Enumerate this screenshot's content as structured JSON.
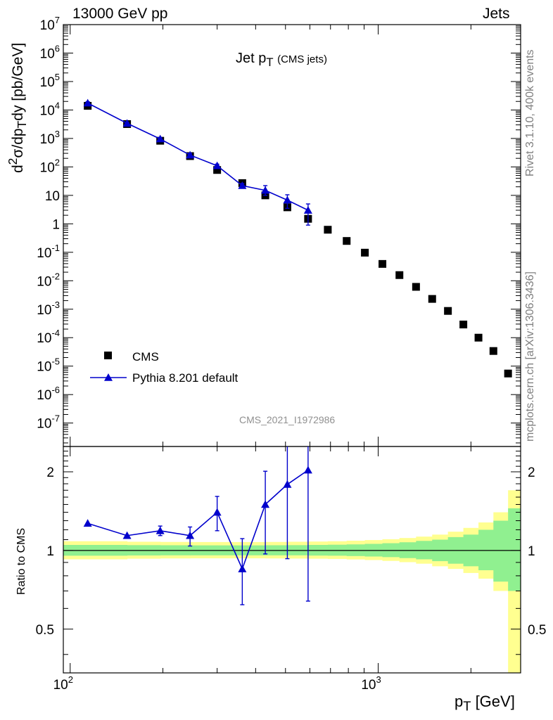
{
  "header": {
    "left_label": "13000 GeV pp",
    "right_label": "Jets"
  },
  "side_labels": {
    "rivet": "Rivet 3.1.10,  400k events",
    "mcplots": "mcplots.cern.ch [arXiv:1306.3436]"
  },
  "colors": {
    "mc": "#0000cc",
    "data": "#000000",
    "band_inner": "#90f090",
    "band_outer": "#ffff90",
    "watermark": "#909090"
  },
  "chart_data": [
    {
      "type": "scatter",
      "title": "Jet p_T (CMS jets)",
      "ylabel": "d²σ/dp_T dy [pb/GeV]",
      "xlabel": "p_T [GeV]",
      "xscale": "log",
      "yscale": "log",
      "xlim": [
        95,
        2900
      ],
      "ylim": [
        1.5e-08,
        10000000.0
      ],
      "legend_position": "bottom-left",
      "watermark": "CMS_2021_I1972986",
      "legend": [
        {
          "label": "CMS",
          "marker": "square",
          "color": "#000000"
        },
        {
          "label": "Pythia 8.201 default",
          "marker": "triangle",
          "color": "#0000cc"
        }
      ],
      "series": [
        {
          "name": "CMS",
          "x": [
            114,
            153,
            196,
            245,
            300,
            362,
            430,
            507,
            592,
            686,
            790,
            905,
            1032,
            1172,
            1327,
            1497,
            1684,
            1890,
            2116,
            2366,
            2640
          ],
          "y": [
            14000,
            3200,
            830,
            240,
            78,
            27,
            10,
            3.8,
            1.5,
            0.62,
            0.25,
            0.097,
            0.039,
            0.0158,
            0.0061,
            0.0023,
            0.00087,
            0.00029,
            0.0001,
            3.4e-05,
            5.5e-06
          ]
        },
        {
          "name": "Pythia 8.201 default",
          "x": [
            114,
            153,
            196,
            245,
            300,
            362,
            430,
            507,
            592
          ],
          "y": [
            17500,
            3400,
            960,
            260,
            110,
            22,
            15,
            6.8,
            3.0
          ],
          "yerr_low": [
            15700,
            3200,
            850,
            225,
            95,
            18,
            10,
            3.5,
            0.9
          ],
          "yerr_high": [
            19500,
            3700,
            1080,
            300,
            125,
            26,
            22,
            10.5,
            5.0
          ]
        }
      ]
    },
    {
      "type": "scatter",
      "ylabel": "Ratio to CMS",
      "xlabel": "p_T [GeV]",
      "xscale": "log",
      "yscale": "log",
      "xlim": [
        95,
        2900
      ],
      "ylim": [
        0.34,
        2.5
      ],
      "yticks": [
        0.5,
        1,
        2
      ],
      "series": [
        {
          "name": "Pythia 8.201 default",
          "x": [
            114,
            153,
            196,
            245,
            300,
            362,
            430,
            507,
            592
          ],
          "y": [
            1.27,
            1.14,
            1.19,
            1.14,
            1.4,
            0.85,
            1.5,
            1.79,
            2.03
          ],
          "yerr_low": [
            1.27,
            1.14,
            1.14,
            1.04,
            1.19,
            0.62,
            0.97,
            0.93,
            0.64
          ],
          "yerr_high": [
            1.27,
            1.14,
            1.24,
            1.23,
            1.61,
            1.11,
            2.01,
            2.7,
            2.7
          ]
        }
      ],
      "band_edges": [
        95,
        114,
        153,
        196,
        245,
        300,
        362,
        430,
        507,
        592,
        686,
        790,
        905,
        1032,
        1172,
        1327,
        1497,
        1684,
        1890,
        2116,
        2366,
        2640,
        2900
      ],
      "band_inner": [
        [
          0.955,
          1.05
        ],
        [
          0.955,
          1.05
        ],
        [
          0.957,
          1.048
        ],
        [
          0.958,
          1.047
        ],
        [
          0.958,
          1.046
        ],
        [
          0.958,
          1.046
        ],
        [
          0.958,
          1.046
        ],
        [
          0.958,
          1.047
        ],
        [
          0.958,
          1.048
        ],
        [
          0.956,
          1.05
        ],
        [
          0.955,
          1.052
        ],
        [
          0.952,
          1.055
        ],
        [
          0.948,
          1.06
        ],
        [
          0.943,
          1.066
        ],
        [
          0.935,
          1.075
        ],
        [
          0.925,
          1.088
        ],
        [
          0.91,
          1.1
        ],
        [
          0.89,
          1.125
        ],
        [
          0.87,
          1.15
        ],
        [
          0.84,
          1.2
        ],
        [
          0.76,
          1.3
        ],
        [
          0.7,
          1.45
        ]
      ],
      "band_outer": [
        [
          0.925,
          1.085
        ],
        [
          0.925,
          1.085
        ],
        [
          0.93,
          1.08
        ],
        [
          0.932,
          1.078
        ],
        [
          0.933,
          1.077
        ],
        [
          0.933,
          1.077
        ],
        [
          0.933,
          1.077
        ],
        [
          0.932,
          1.078
        ],
        [
          0.931,
          1.08
        ],
        [
          0.93,
          1.082
        ],
        [
          0.928,
          1.085
        ],
        [
          0.924,
          1.09
        ],
        [
          0.919,
          1.096
        ],
        [
          0.912,
          1.104
        ],
        [
          0.902,
          1.116
        ],
        [
          0.89,
          1.13
        ],
        [
          0.87,
          1.15
        ],
        [
          0.85,
          1.18
        ],
        [
          0.82,
          1.22
        ],
        [
          0.78,
          1.28
        ],
        [
          0.7,
          1.4
        ],
        [
          0.34,
          1.7
        ]
      ]
    }
  ],
  "axis_text": {
    "main_ylabel_html": "d<sup>2</sup>σ/dp<sub>T</sub>dy [pb/GeV]",
    "title_html": "Jet p<sub>T</sub> <span style='font-size:15px'>(CMS jets)</span>",
    "xlabel_html": "p<sub>T</sub> [GeV]",
    "ratio_ylabel": "Ratio to CMS",
    "watermark": "CMS_2021_I1972986"
  }
}
